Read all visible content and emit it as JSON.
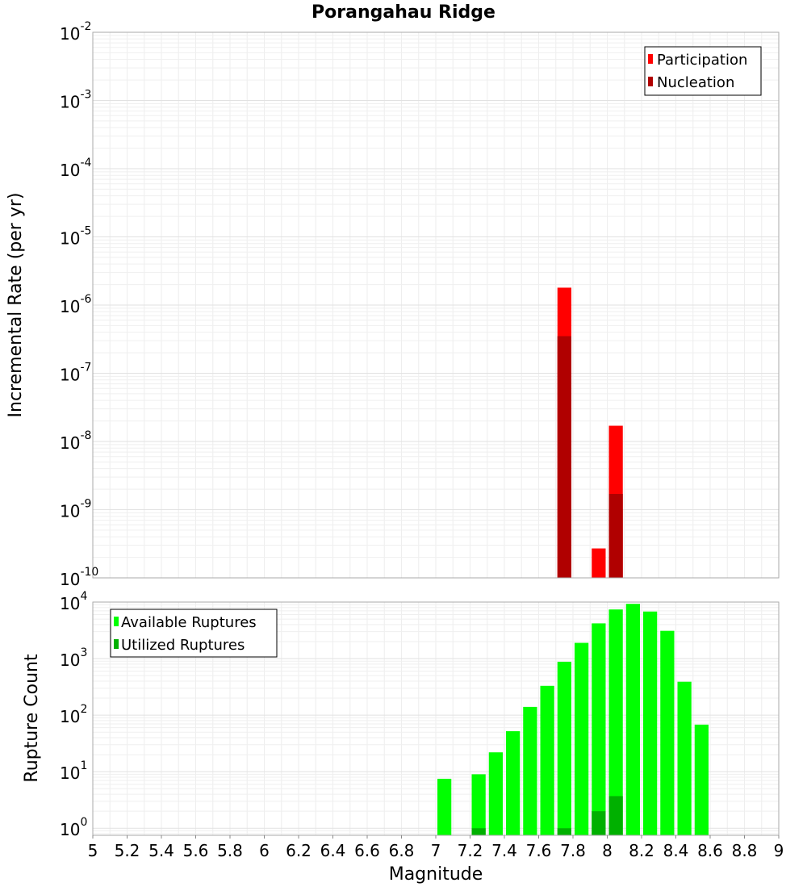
{
  "chart_data": [
    {
      "type": "bar",
      "title": "Porangahau Ridge",
      "xlabel": "",
      "ylabel": "Incremental Rate (per yr)",
      "yscale": "log",
      "xlim": [
        5,
        9
      ],
      "ylim": [
        1e-10,
        0.01
      ],
      "y_ticks": [
        {
          "base": "10",
          "exp": "-2"
        },
        {
          "base": "10",
          "exp": "-3"
        },
        {
          "base": "10",
          "exp": "-4"
        },
        {
          "base": "10",
          "exp": "-5"
        },
        {
          "base": "10",
          "exp": "-6"
        },
        {
          "base": "10",
          "exp": "-7"
        },
        {
          "base": "10",
          "exp": "-8"
        },
        {
          "base": "10",
          "exp": "-9"
        },
        {
          "base": "10",
          "exp": "-10"
        }
      ],
      "legend": {
        "position": "top-right",
        "entries": [
          "Participation",
          "Nucleation"
        ]
      },
      "series": [
        {
          "name": "Participation",
          "color": "#ff0000",
          "x": [
            7.75,
            7.95,
            8.05
          ],
          "values": [
            1.8e-06,
            2.7e-10,
            1.7e-08
          ]
        },
        {
          "name": "Nucleation",
          "color": "#b00000",
          "x": [
            7.75,
            8.05
          ],
          "values": [
            3.5e-07,
            1.7e-09
          ]
        }
      ]
    },
    {
      "type": "bar",
      "title": "",
      "xlabel": "Magnitude",
      "ylabel": "Rupture Count",
      "yscale": "log",
      "xlim": [
        5,
        9
      ],
      "ylim": [
        0.75,
        10000
      ],
      "x_ticks": [
        "5",
        "5.2",
        "5.4",
        "5.6",
        "5.8",
        "6",
        "6.2",
        "6.4",
        "6.6",
        "6.8",
        "7",
        "7.2",
        "7.4",
        "7.6",
        "7.8",
        "8",
        "8.2",
        "8.4",
        "8.6",
        "8.8",
        "9"
      ],
      "y_ticks": [
        {
          "base": "10",
          "exp": "4"
        },
        {
          "base": "10",
          "exp": "3"
        },
        {
          "base": "10",
          "exp": "2"
        },
        {
          "base": "10",
          "exp": "1"
        },
        {
          "base": "10",
          "exp": "0"
        }
      ],
      "legend": {
        "position": "top-left",
        "entries": [
          "Available Ruptures",
          "Utilized Ruptures"
        ]
      },
      "series": [
        {
          "name": "Available Ruptures",
          "color": "#00ff00",
          "x": [
            7.05,
            7.25,
            7.35,
            7.45,
            7.55,
            7.65,
            7.75,
            7.85,
            7.95,
            8.05,
            8.15,
            8.25,
            8.35,
            8.45,
            8.55
          ],
          "values": [
            7.5,
            9,
            22,
            52,
            140,
            330,
            880,
            1900,
            4200,
            7400,
            9300,
            6800,
            3100,
            390,
            68
          ]
        },
        {
          "name": "Utilized Ruptures",
          "color": "#00b000",
          "x": [
            7.25,
            7.75,
            7.95,
            8.05
          ],
          "values": [
            1,
            1,
            2,
            3.7
          ]
        }
      ]
    }
  ]
}
